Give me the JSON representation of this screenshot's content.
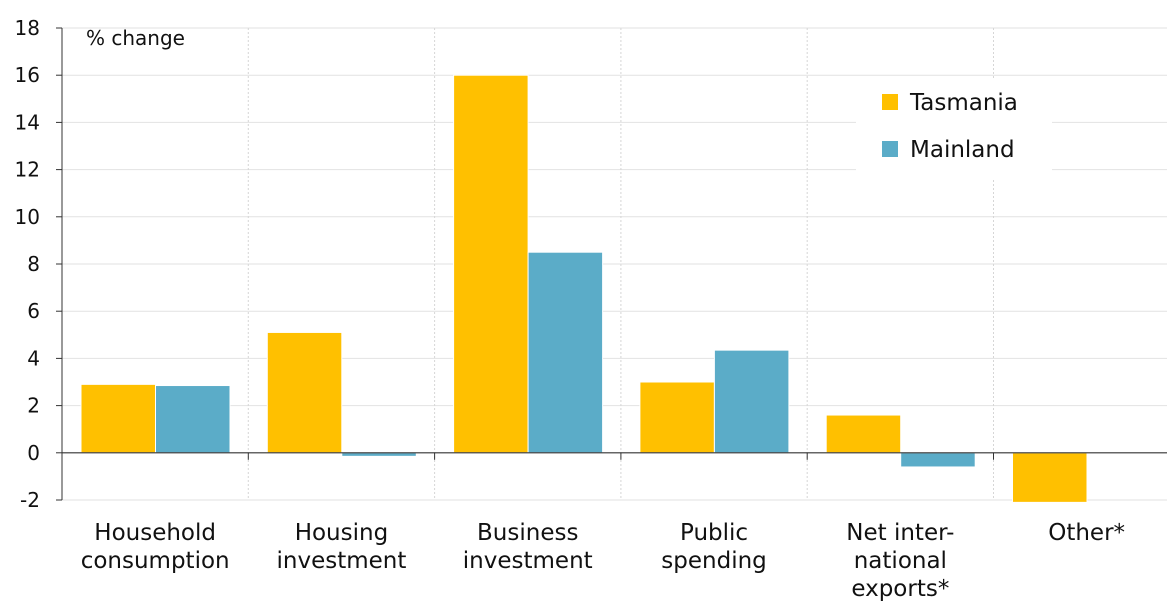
{
  "chart_data": {
    "type": "bar",
    "unit_label": "% change",
    "categories": [
      [
        "Household",
        "consumption"
      ],
      [
        "Housing",
        "investment"
      ],
      [
        "Business",
        "investment"
      ],
      [
        "Public",
        "spending"
      ],
      [
        "Net inter-",
        "national",
        "exports*"
      ],
      [
        "Other*"
      ]
    ],
    "series": [
      {
        "name": "Tasmania",
        "color": "#FFC000",
        "values": [
          2.9,
          5.1,
          16.0,
          3.0,
          1.6,
          -2.1
        ]
      },
      {
        "name": "Mainland",
        "color": "#5BACC8",
        "values": [
          2.85,
          -0.15,
          8.5,
          4.35,
          -0.6,
          0.0
        ]
      }
    ],
    "ylim": [
      -2,
      18
    ],
    "yticks": [
      -2,
      0,
      2,
      4,
      6,
      8,
      10,
      12,
      14,
      16,
      18
    ],
    "grid": true,
    "legend_position": "top-right"
  }
}
